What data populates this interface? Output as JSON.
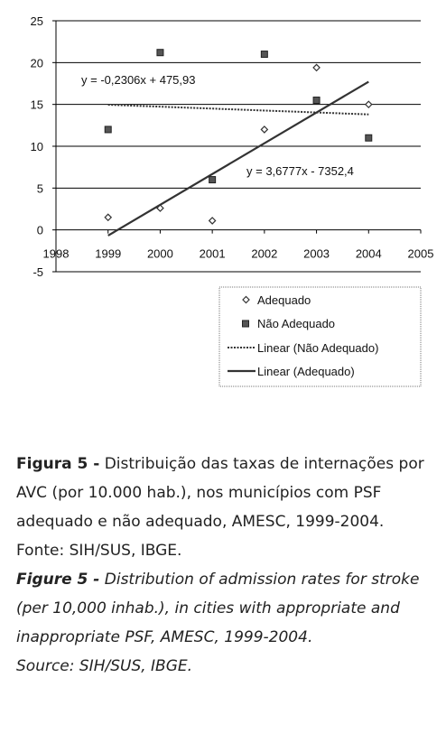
{
  "chart_data": {
    "type": "scatter",
    "x_min": 1998,
    "x_max": 2005,
    "x_ticks": [
      1998,
      1999,
      2000,
      2001,
      2002,
      2003,
      2004,
      2005
    ],
    "y_min": -5,
    "y_max": 25,
    "y_ticks": [
      -5,
      0,
      5,
      10,
      15,
      20,
      25
    ],
    "gridlines": "horizontal",
    "series": [
      {
        "name": "Adequado",
        "marker": "diamond",
        "points": [
          [
            1999,
            1.5
          ],
          [
            2000,
            2.6
          ],
          [
            2001,
            1.1
          ],
          [
            2002,
            12.0
          ],
          [
            2003,
            19.4
          ],
          [
            2004,
            15.0
          ]
        ]
      },
      {
        "name": "Não Adequado",
        "marker": "square",
        "points": [
          [
            1999,
            12.0
          ],
          [
            2000,
            21.2
          ],
          [
            2001,
            6.0
          ],
          [
            2002,
            21.0
          ],
          [
            2003,
            15.5
          ],
          [
            2004,
            11.0
          ]
        ]
      }
    ],
    "trendlines": [
      {
        "name": "Linear (Não Adequado)",
        "style": "dotted",
        "slope": -0.2306,
        "intercept": 475.93,
        "x_from": 1999,
        "x_to": 2004,
        "equation": "y = -0,2306x + 475,93"
      },
      {
        "name": "Linear (Adequado)",
        "style": "solid",
        "slope": 3.6777,
        "intercept": -7352.4,
        "x_from": 1999,
        "x_to": 2004,
        "equation": "y = 3,6777x - 7352,4"
      }
    ],
    "legend": [
      "Adequado",
      "Não Adequado",
      "Linear (Não Adequado)",
      "Linear (Adequado)"
    ],
    "legend_position": "bottom-right"
  },
  "caption": {
    "pt_label": "Figura 5 -",
    "pt_text": " Distribuição das taxas de internações por AVC (por 10.000 hab.), nos municípios com PSF adequado e não adequado, AMESC, 1999-2004.",
    "pt_source": "Fonte: SIH/SUS, IBGE.",
    "en_label": "Figure 5 -",
    "en_text": " Distribution of admission rates for stroke (per 10,000 inhab.), in cities with appropriate and inappropriate PSF, AMESC, 1999-2004.",
    "en_source": "Source: SIH/SUS, IBGE."
  }
}
